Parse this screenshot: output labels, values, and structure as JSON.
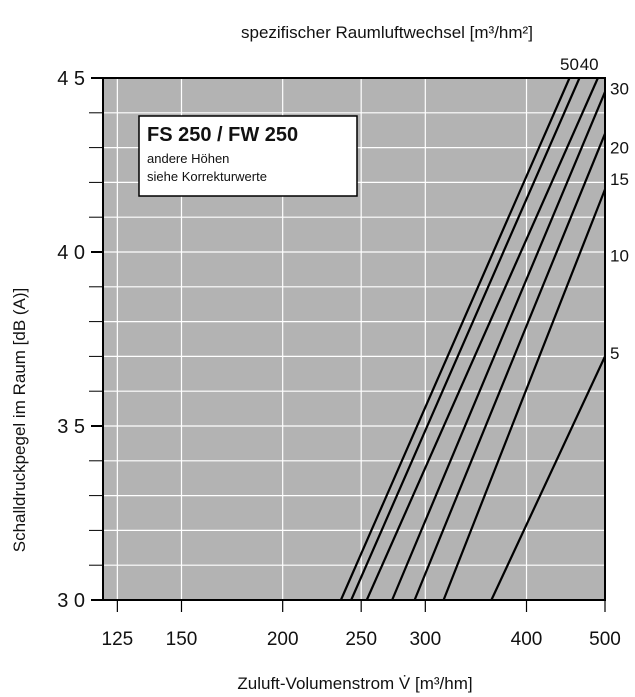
{
  "chart_data": {
    "type": "line",
    "top_title": "spezifischer Raumluftwechsel",
    "top_title_unit": "[m³/hm²]",
    "xlabel": "Zuluft-Volumenstrom V̇",
    "xlabel_unit": "[m³/hm]",
    "ylabel": "Schalldruckpegel im Raum [dB (A)]",
    "x_scale": "log",
    "xlim": [
      120,
      500
    ],
    "ylim": [
      30,
      45
    ],
    "x_ticks": [
      125,
      150,
      200,
      250,
      300,
      400,
      500
    ],
    "x_tick_labels": [
      "125",
      "150",
      "200",
      "250",
      "300",
      "400",
      "500"
    ],
    "y_ticks": [
      30,
      35,
      40,
      45
    ],
    "y_tick_labels": [
      "3 0",
      "3 5",
      "4 0",
      "4 5"
    ],
    "y_minor_step": 1,
    "grid": true,
    "background": "#b3b3b3",
    "grid_color": "#ffffff",
    "line_color": "#000000",
    "box": {
      "title": "FS 250 / FW 250",
      "line1": "andere Höhen",
      "line2": "siehe Korrekturwerte"
    },
    "series": [
      {
        "name": "50",
        "x0": 236,
        "x1": 452
      },
      {
        "name": "40",
        "x0": 243,
        "x1": 465
      },
      {
        "name": "30",
        "x0": 254,
        "x1": 490
      },
      {
        "name": "20",
        "x0": 273,
        "x1": 500
      },
      {
        "name": "15",
        "x0": 291,
        "x1": 500
      },
      {
        "name": "10",
        "x0": 316,
        "x1": 500
      },
      {
        "name": "5",
        "x0": 362,
        "x1": 500
      }
    ],
    "series_labels": [
      {
        "text": "50",
        "anchor_x": 452,
        "anchor_y": 45.4
      },
      {
        "text": "40",
        "anchor_x": 478,
        "anchor_y": 45.4
      },
      {
        "text": "30",
        "anchor_x": 500,
        "anchor_y": 44.7
      },
      {
        "text": "20",
        "anchor_x": 500,
        "anchor_y": 43.0
      },
      {
        "text": "15",
        "anchor_x": 500,
        "anchor_y": 42.1
      },
      {
        "text": "10",
        "anchor_x": 500,
        "anchor_y": 39.9
      },
      {
        "text": "5",
        "anchor_x": 500,
        "anchor_y": 37.1
      }
    ],
    "line_ends_y": {
      "50": 45,
      "40": 45,
      "30": 45,
      "20": 44.6,
      "15": 43.4,
      "10": 41.8,
      "5": 37.0
    }
  }
}
